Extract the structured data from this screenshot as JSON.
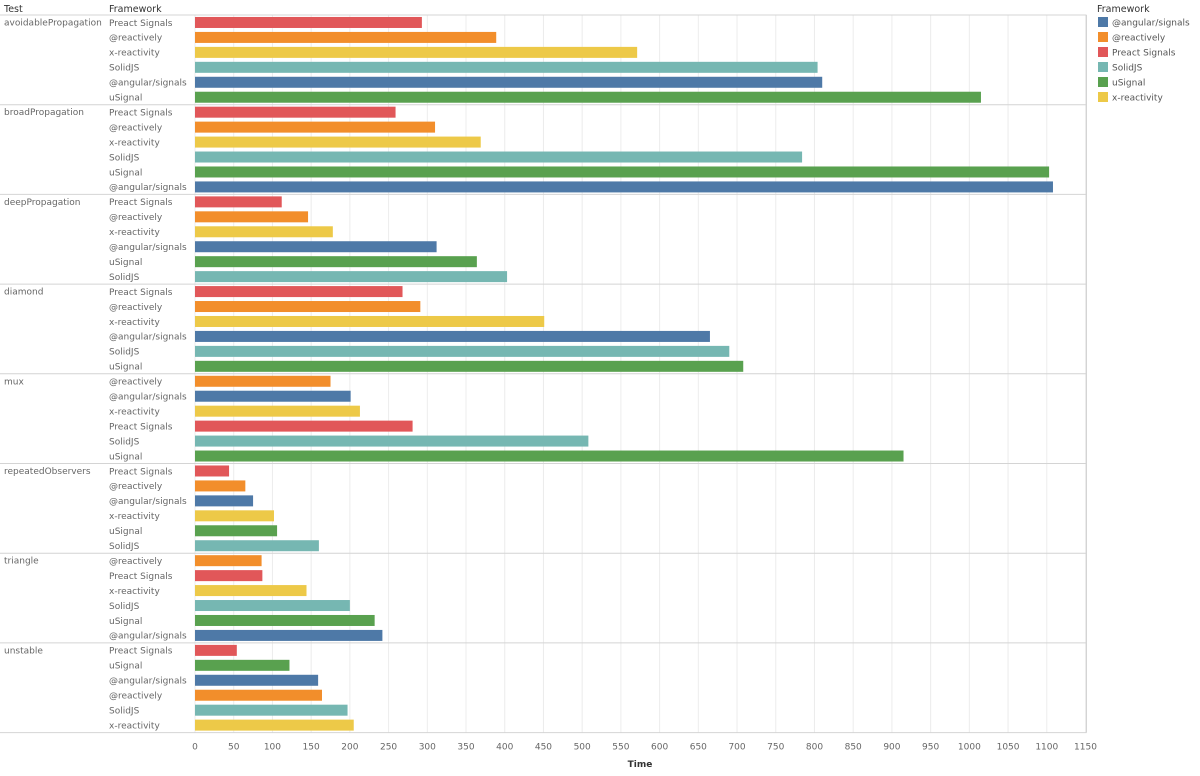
{
  "colors": {
    "@angular/signals": "#4e79a7",
    "@reactively": "#f28e2b",
    "Preact Signals": "#e15759",
    "SolidJS": "#76b7b2",
    "uSignal": "#59a14f",
    "x-reactivity": "#edc948"
  },
  "chart_data": {
    "type": "bar",
    "orientation": "horizontal",
    "col_header_test": "Test",
    "col_header_framework": "Framework",
    "xlabel": "Time",
    "xlim": [
      0,
      1150
    ],
    "xticks": [
      0,
      50,
      100,
      150,
      200,
      250,
      300,
      350,
      400,
      450,
      500,
      550,
      600,
      650,
      700,
      750,
      800,
      850,
      900,
      950,
      1000,
      1050,
      1100,
      1150
    ],
    "grid": true,
    "legend": {
      "title": "Framework",
      "placement": "top-right",
      "entries": [
        "@angular/signals",
        "@reactively",
        "Preact Signals",
        "SolidJS",
        "uSignal",
        "x-reactivity"
      ]
    },
    "groups": [
      {
        "test": "avoidablePropagation",
        "rows": [
          {
            "framework": "Preact Signals",
            "value": 293
          },
          {
            "framework": "@reactively",
            "value": 389
          },
          {
            "framework": "x-reactivity",
            "value": 571
          },
          {
            "framework": "SolidJS",
            "value": 804
          },
          {
            "framework": "@angular/signals",
            "value": 810
          },
          {
            "framework": "uSignal",
            "value": 1015
          }
        ]
      },
      {
        "test": "broadPropagation",
        "rows": [
          {
            "framework": "Preact Signals",
            "value": 259
          },
          {
            "framework": "@reactively",
            "value": 310
          },
          {
            "framework": "x-reactivity",
            "value": 369
          },
          {
            "framework": "SolidJS",
            "value": 784
          },
          {
            "framework": "uSignal",
            "value": 1103
          },
          {
            "framework": "@angular/signals",
            "value": 1108
          }
        ]
      },
      {
        "test": "deepPropagation",
        "rows": [
          {
            "framework": "Preact Signals",
            "value": 112
          },
          {
            "framework": "@reactively",
            "value": 146
          },
          {
            "framework": "x-reactivity",
            "value": 178
          },
          {
            "framework": "@angular/signals",
            "value": 312
          },
          {
            "framework": "uSignal",
            "value": 364
          },
          {
            "framework": "SolidJS",
            "value": 403
          }
        ]
      },
      {
        "test": "diamond",
        "rows": [
          {
            "framework": "Preact Signals",
            "value": 268
          },
          {
            "framework": "@reactively",
            "value": 291
          },
          {
            "framework": "x-reactivity",
            "value": 451
          },
          {
            "framework": "@angular/signals",
            "value": 665
          },
          {
            "framework": "SolidJS",
            "value": 690
          },
          {
            "framework": "uSignal",
            "value": 708
          }
        ]
      },
      {
        "test": "mux",
        "rows": [
          {
            "framework": "@reactively",
            "value": 175
          },
          {
            "framework": "@angular/signals",
            "value": 201
          },
          {
            "framework": "x-reactivity",
            "value": 213
          },
          {
            "framework": "Preact Signals",
            "value": 281
          },
          {
            "framework": "SolidJS",
            "value": 508
          },
          {
            "framework": "uSignal",
            "value": 915
          }
        ]
      },
      {
        "test": "repeatedObservers",
        "rows": [
          {
            "framework": "Preact Signals",
            "value": 44
          },
          {
            "framework": "@reactively",
            "value": 65
          },
          {
            "framework": "@angular/signals",
            "value": 75
          },
          {
            "framework": "x-reactivity",
            "value": 102
          },
          {
            "framework": "uSignal",
            "value": 106
          },
          {
            "framework": "SolidJS",
            "value": 160
          }
        ]
      },
      {
        "test": "triangle",
        "rows": [
          {
            "framework": "@reactively",
            "value": 86
          },
          {
            "framework": "Preact Signals",
            "value": 87
          },
          {
            "framework": "x-reactivity",
            "value": 144
          },
          {
            "framework": "SolidJS",
            "value": 200
          },
          {
            "framework": "uSignal",
            "value": 232
          },
          {
            "framework": "@angular/signals",
            "value": 242
          }
        ]
      },
      {
        "test": "unstable",
        "rows": [
          {
            "framework": "Preact Signals",
            "value": 54
          },
          {
            "framework": "uSignal",
            "value": 122
          },
          {
            "framework": "@angular/signals",
            "value": 159
          },
          {
            "framework": "@reactively",
            "value": 164
          },
          {
            "framework": "SolidJS",
            "value": 197
          },
          {
            "framework": "x-reactivity",
            "value": 205
          }
        ]
      }
    ]
  }
}
